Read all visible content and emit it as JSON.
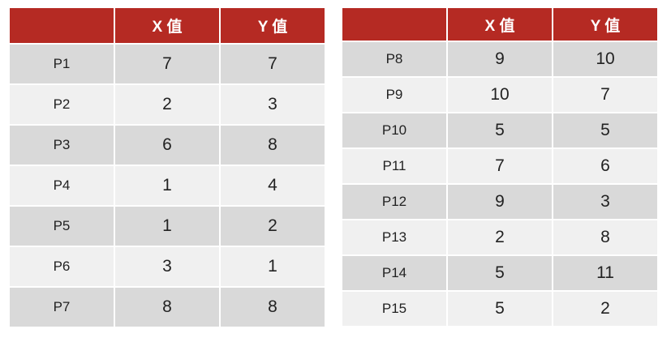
{
  "tables": [
    {
      "headers": [
        "",
        "X 值",
        "Y 值"
      ],
      "rows": [
        {
          "point": "P1",
          "x": "7",
          "y": "7"
        },
        {
          "point": "P2",
          "x": "2",
          "y": "3"
        },
        {
          "point": "P3",
          "x": "6",
          "y": "8"
        },
        {
          "point": "P4",
          "x": "1",
          "y": "4"
        },
        {
          "point": "P5",
          "x": "1",
          "y": "2"
        },
        {
          "point": "P6",
          "x": "3",
          "y": "1"
        },
        {
          "point": "P7",
          "x": "8",
          "y": "8"
        }
      ]
    },
    {
      "headers": [
        "",
        "X 值",
        "Y 值"
      ],
      "rows": [
        {
          "point": "P8",
          "x": "9",
          "y": "10"
        },
        {
          "point": "P9",
          "x": "10",
          "y": "7"
        },
        {
          "point": "P10",
          "x": "5",
          "y": "5"
        },
        {
          "point": "P11",
          "x": "7",
          "y": "6"
        },
        {
          "point": "P12",
          "x": "9",
          "y": "3"
        },
        {
          "point": "P13",
          "x": "2",
          "y": "8"
        },
        {
          "point": "P14",
          "x": "5",
          "y": "11"
        },
        {
          "point": "P15",
          "x": "5",
          "y": "2"
        }
      ]
    }
  ],
  "colors": {
    "header_bg": "#b52a23",
    "header_text": "#ffffff",
    "row_odd": "#d9d9d9",
    "row_even": "#f0f0f0"
  }
}
